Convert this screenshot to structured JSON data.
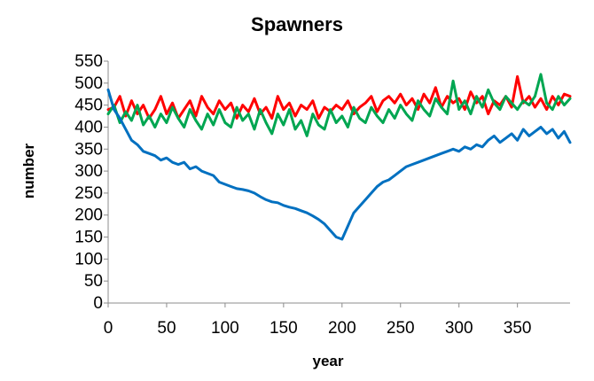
{
  "chart_data": {
    "type": "line",
    "title": "Spawners",
    "xlabel": "year",
    "ylabel": "number",
    "xlim": [
      0,
      395
    ],
    "ylim": [
      0,
      550
    ],
    "xticks": [
      0,
      50,
      100,
      150,
      200,
      250,
      300,
      350
    ],
    "yticks": [
      0,
      50,
      100,
      150,
      200,
      250,
      300,
      350,
      400,
      450,
      500,
      550
    ],
    "grid": false,
    "legend": "none",
    "x": [
      0,
      5,
      10,
      15,
      20,
      25,
      30,
      35,
      40,
      45,
      50,
      55,
      60,
      65,
      70,
      75,
      80,
      85,
      90,
      95,
      100,
      105,
      110,
      115,
      120,
      125,
      130,
      135,
      140,
      145,
      150,
      155,
      160,
      165,
      170,
      175,
      180,
      185,
      190,
      195,
      200,
      205,
      210,
      215,
      220,
      225,
      230,
      235,
      240,
      245,
      250,
      255,
      260,
      265,
      270,
      275,
      280,
      285,
      290,
      295,
      300,
      305,
      310,
      315,
      320,
      325,
      330,
      335,
      340,
      345,
      350,
      355,
      360,
      365,
      370,
      375,
      380,
      385,
      390,
      395
    ],
    "series": [
      {
        "name": "red",
        "color": "#ff0000",
        "values": [
          440,
          445,
          470,
          425,
          460,
          430,
          450,
          420,
          440,
          470,
          430,
          455,
          420,
          440,
          460,
          425,
          470,
          445,
          430,
          460,
          440,
          455,
          420,
          450,
          435,
          465,
          430,
          445,
          420,
          470,
          440,
          455,
          425,
          450,
          440,
          460,
          420,
          445,
          435,
          450,
          440,
          460,
          430,
          445,
          455,
          470,
          435,
          460,
          470,
          455,
          475,
          450,
          465,
          440,
          475,
          455,
          490,
          445,
          470,
          455,
          465,
          440,
          480,
          455,
          470,
          430,
          460,
          450,
          470,
          445,
          515,
          455,
          470,
          445,
          465,
          440,
          470,
          450,
          475,
          470
        ]
      },
      {
        "name": "green",
        "color": "#00a651",
        "values": [
          430,
          450,
          410,
          435,
          415,
          450,
          405,
          425,
          400,
          430,
          410,
          445,
          420,
          400,
          440,
          415,
          395,
          430,
          405,
          440,
          410,
          400,
          445,
          415,
          430,
          395,
          440,
          410,
          385,
          430,
          405,
          440,
          395,
          415,
          380,
          430,
          405,
          395,
          440,
          410,
          425,
          400,
          445,
          420,
          410,
          445,
          425,
          410,
          440,
          420,
          450,
          430,
          415,
          460,
          440,
          425,
          465,
          445,
          430,
          505,
          440,
          460,
          430,
          470,
          445,
          485,
          455,
          440,
          470,
          455,
          440,
          460,
          450,
          470,
          520,
          455,
          440,
          470,
          450,
          465
        ]
      },
      {
        "name": "blue",
        "color": "#0070c0",
        "values": [
          485,
          440,
          420,
          395,
          370,
          360,
          345,
          340,
          335,
          325,
          330,
          320,
          315,
          320,
          305,
          310,
          300,
          295,
          290,
          275,
          270,
          265,
          260,
          258,
          255,
          250,
          242,
          235,
          230,
          228,
          222,
          218,
          215,
          210,
          205,
          198,
          190,
          180,
          165,
          150,
          145,
          175,
          205,
          220,
          235,
          250,
          265,
          275,
          280,
          290,
          300,
          310,
          315,
          320,
          325,
          330,
          335,
          340,
          345,
          350,
          345,
          355,
          350,
          360,
          355,
          370,
          380,
          365,
          375,
          385,
          370,
          395,
          380,
          390,
          400,
          385,
          395,
          375,
          390,
          365
        ]
      }
    ]
  }
}
